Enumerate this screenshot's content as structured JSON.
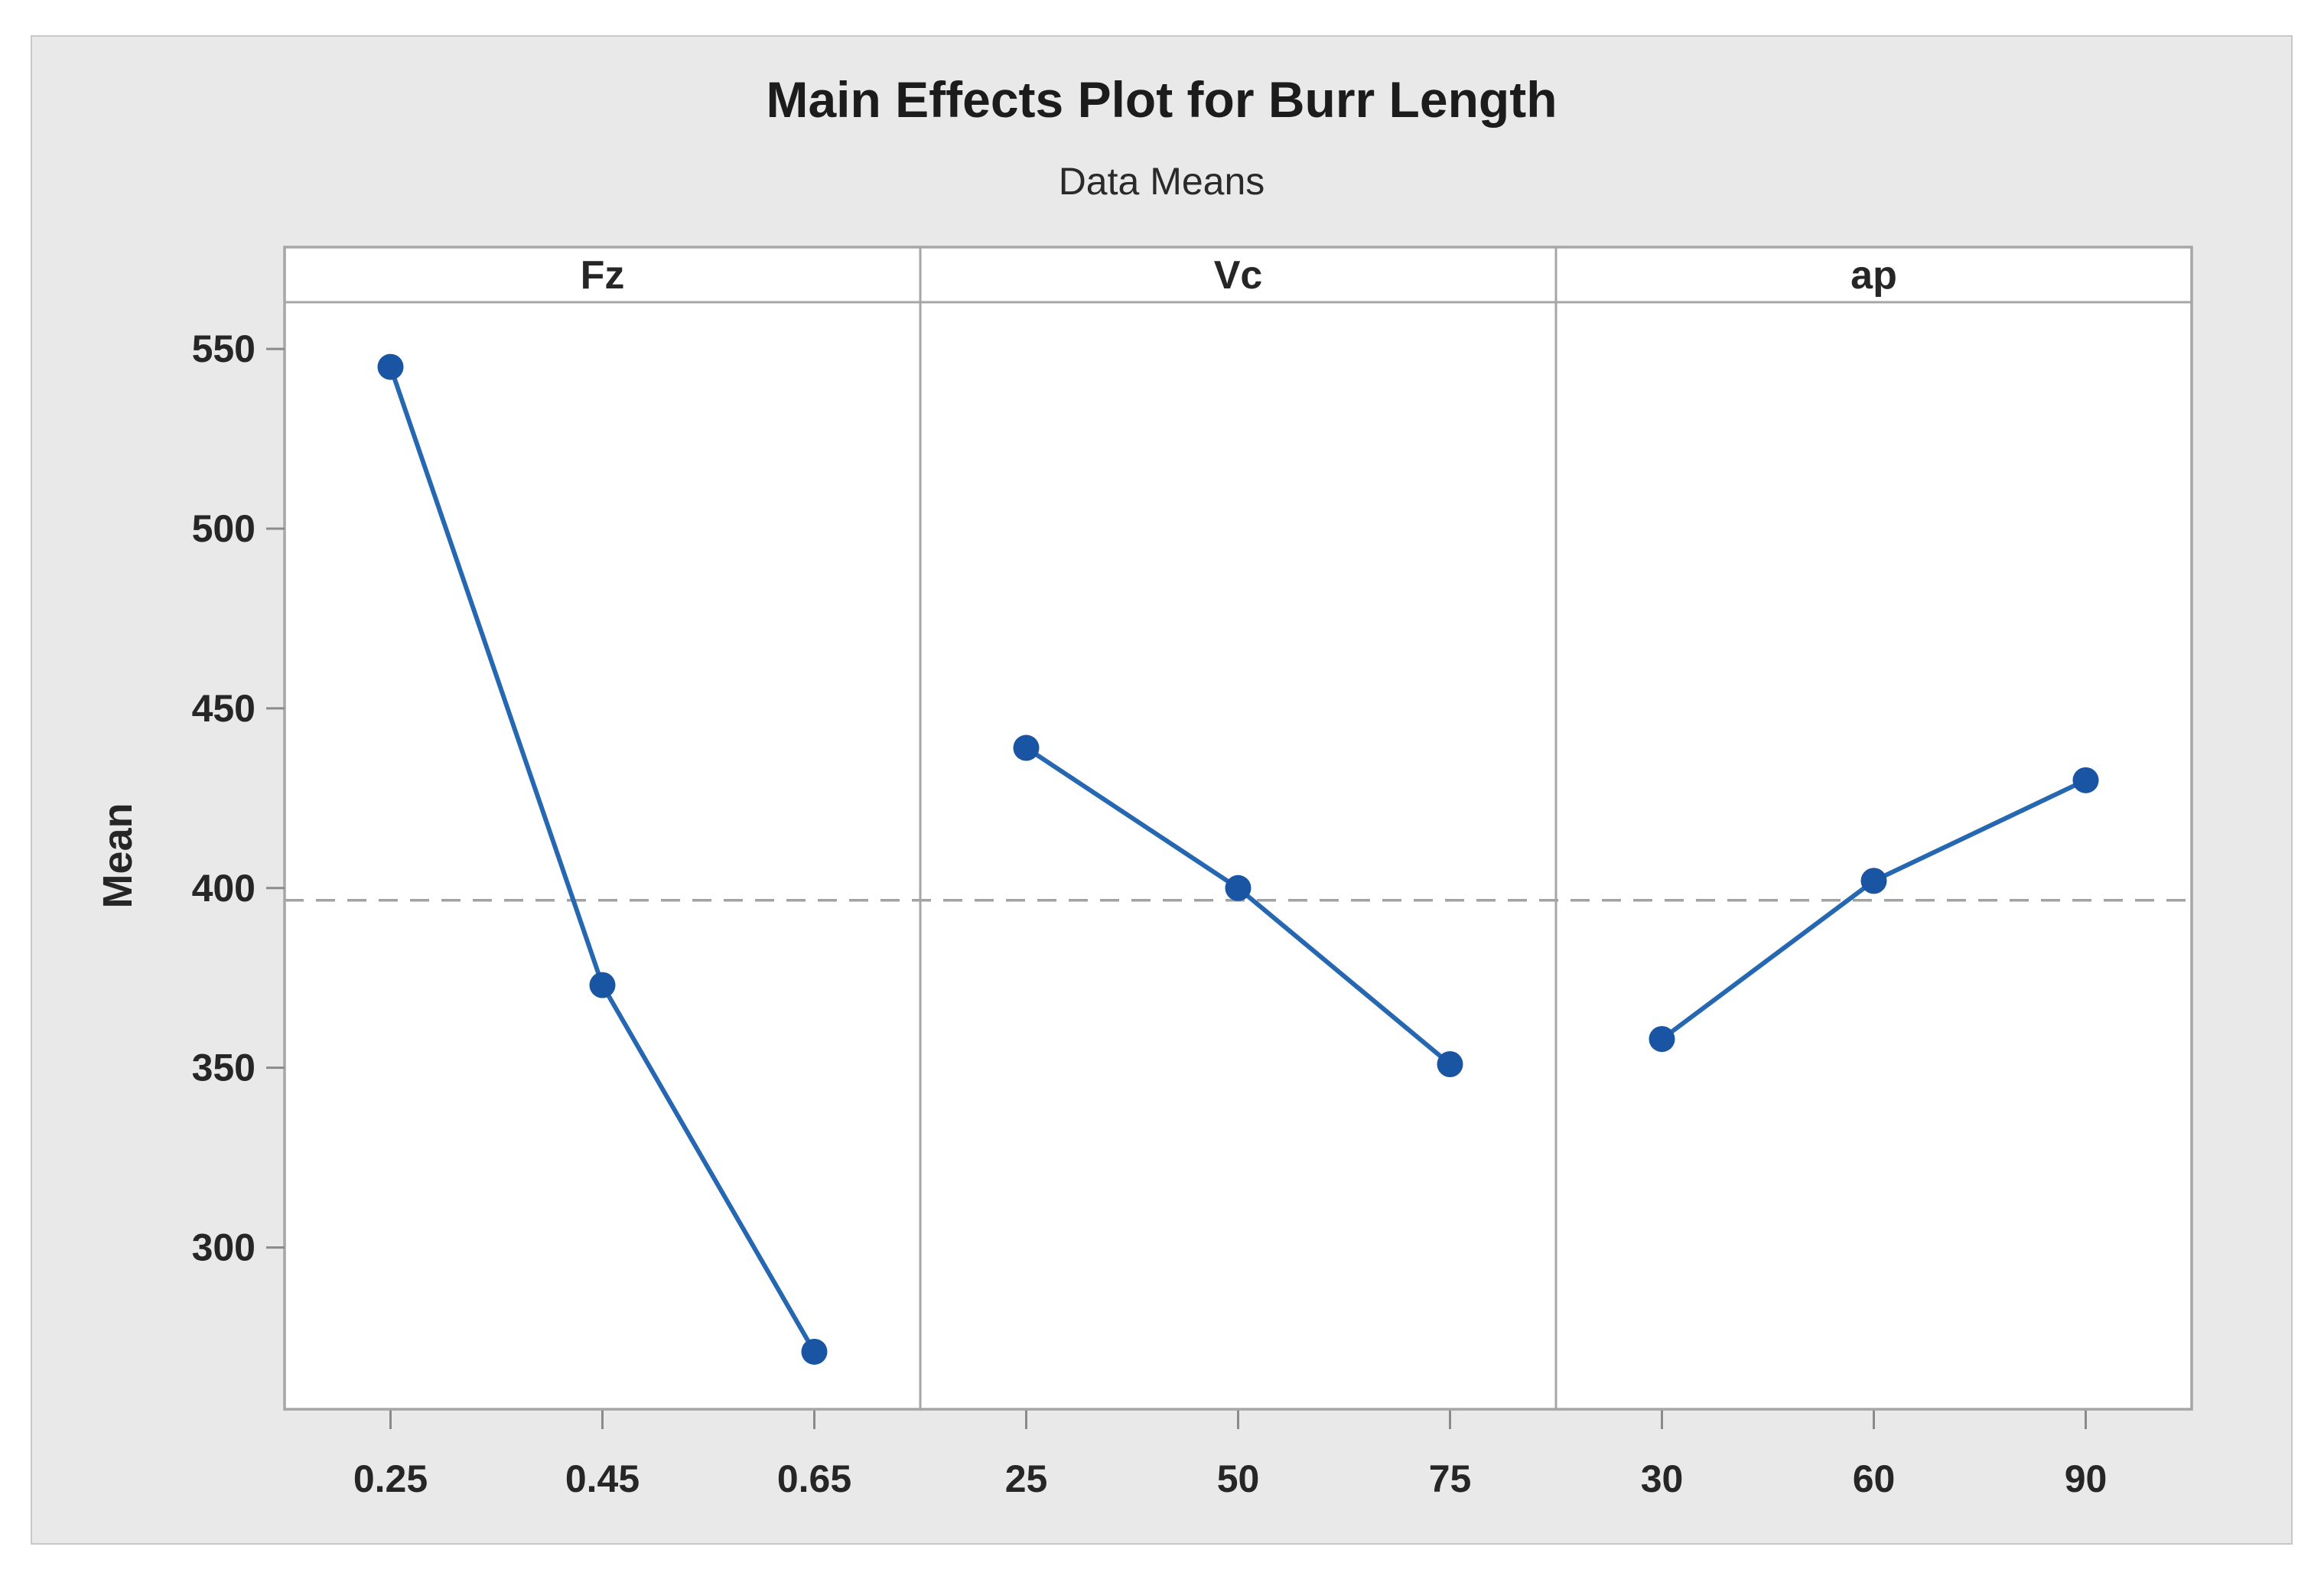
{
  "window": {
    "background": "#ffffff",
    "canvas_background": "#e9e9e9"
  },
  "chart_data": {
    "type": "line",
    "subtype": "main-effects-plot",
    "title": "Main Effects Plot for Burr Length",
    "subtitle": "Data Means",
    "ylabel": "Mean",
    "yticks": [
      300,
      350,
      400,
      450,
      500,
      550
    ],
    "ylim": [
      255,
      563
    ],
    "grid": false,
    "legend_position": "none",
    "reference_line": 396.6,
    "panels": [
      {
        "factor": "Fz",
        "categories": [
          "0.25",
          "0.45",
          "0.65"
        ],
        "values": [
          545,
          373,
          271
        ]
      },
      {
        "factor": "Vc",
        "categories": [
          "25",
          "50",
          "75"
        ],
        "values": [
          439,
          400,
          351
        ]
      },
      {
        "factor": "ap",
        "categories": [
          "30",
          "60",
          "90"
        ],
        "values": [
          358,
          402,
          430
        ]
      }
    ],
    "colors": {
      "line": "#2667b2",
      "marker": "#1a55a4",
      "reference_line": "#a2a2a2",
      "axis_frame": "#a6a6a6",
      "tick_mark": "#8a8a8a",
      "plot_background": "#ffffff"
    }
  }
}
